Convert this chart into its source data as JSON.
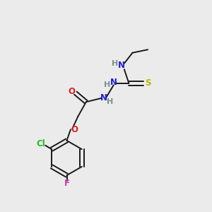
{
  "background_color": "#ebebeb",
  "bond_color": "#1a1a1a",
  "atom_colors": {
    "C": "#1a1a1a",
    "H": "#7a9090",
    "N": "#2020d0",
    "O": "#dd2020",
    "S": "#b8b800",
    "Cl": "#22bb22",
    "F": "#cc44aa"
  },
  "figsize": [
    3.0,
    3.0
  ],
  "dpi": 100
}
